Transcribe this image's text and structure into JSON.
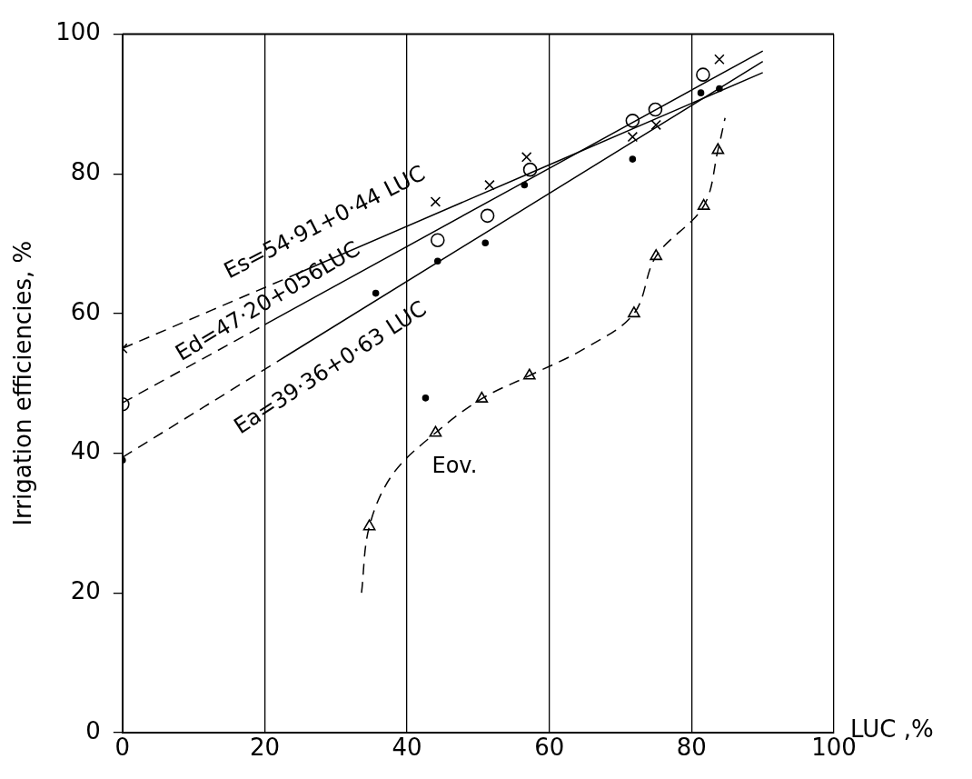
{
  "chart_data": {
    "type": "scatter",
    "xlabel": "LUC ,%",
    "ylabel": "Irrigation efficiencies, %",
    "xlim": [
      0,
      100
    ],
    "ylim": [
      0,
      100
    ],
    "xticks": [
      0,
      20,
      40,
      60,
      80,
      100
    ],
    "yticks": [
      0,
      20,
      40,
      60,
      80,
      100
    ],
    "grid": "x",
    "legend": false,
    "series": [
      {
        "type": "scatter",
        "color": "#000000",
        "marker": "cross",
        "x": [
          0,
          44,
          51.6,
          56.8,
          71.7,
          75,
          83.9
        ],
        "values": [
          55,
          76,
          78.4,
          82.4,
          85.3,
          87,
          96.4
        ]
      },
      {
        "type": "scatter",
        "color": "#000000",
        "marker": "circle",
        "x": [
          0,
          44.3,
          51.3,
          57.3,
          71.7,
          74.9,
          81.6
        ],
        "values": [
          47,
          70.5,
          74,
          80.6,
          87.6,
          89.2,
          94.2
        ]
      },
      {
        "type": "scatter",
        "color": "#000000",
        "marker": "dot",
        "x": [
          0,
          35.6,
          42.6,
          44.3,
          51,
          56.5,
          71.7,
          81.3,
          83.9
        ],
        "values": [
          39,
          62.9,
          47.9,
          67.5,
          70.1,
          78.4,
          82.1,
          91.6,
          92.2
        ]
      },
      {
        "type": "scatter",
        "color": "#000000",
        "marker": "triangle",
        "x": [
          34.7,
          44,
          50.5,
          57.2,
          71.9,
          75,
          81.7,
          83.7
        ],
        "values": [
          29.5,
          42.9,
          47.8,
          51.1,
          60,
          68.2,
          75.4,
          83.4
        ]
      },
      {
        "type": "line",
        "color": "#000000",
        "marker": "none",
        "line_style": "dashed",
        "x": [
          0,
          25
        ],
        "values": [
          55,
          65.9
        ]
      },
      {
        "type": "line",
        "color": "#000000",
        "marker": "none",
        "line_style": "solid",
        "x": [
          25,
          90
        ],
        "values": [
          65.9,
          94.5
        ]
      },
      {
        "type": "line",
        "color": "#000000",
        "marker": "none",
        "line_style": "dashed",
        "x": [
          0,
          20
        ],
        "values": [
          47.2,
          58.4
        ]
      },
      {
        "type": "line",
        "color": "#000000",
        "marker": "none",
        "line_style": "solid",
        "x": [
          20,
          90
        ],
        "values": [
          58.4,
          97.6
        ]
      },
      {
        "type": "line",
        "color": "#000000",
        "marker": "none",
        "line_style": "dashed",
        "x": [
          0,
          23
        ],
        "values": [
          39.4,
          53.9
        ]
      },
      {
        "type": "line",
        "color": "#000000",
        "marker": "none",
        "line_style": "solid",
        "x": [
          23,
          90
        ],
        "values": [
          53.9,
          96.1
        ]
      },
      {
        "type": "line",
        "color": "#000000",
        "marker": "none",
        "line_style": "dashed",
        "x": [
          33.6,
          34.7,
          38,
          44,
          50.5,
          57.2,
          65,
          71.9,
          75,
          81.7,
          83.7,
          84.7
        ],
        "values": [
          20,
          29.5,
          37,
          42.9,
          47.8,
          51.1,
          55,
          60,
          68.2,
          75.4,
          83.4,
          88
        ]
      }
    ],
    "annotations": [
      "Es=54·91+0·44 LUC",
      "Ed=47·20+056LUC",
      "Ea=39·36+0·63 LUC",
      "Eov."
    ]
  }
}
